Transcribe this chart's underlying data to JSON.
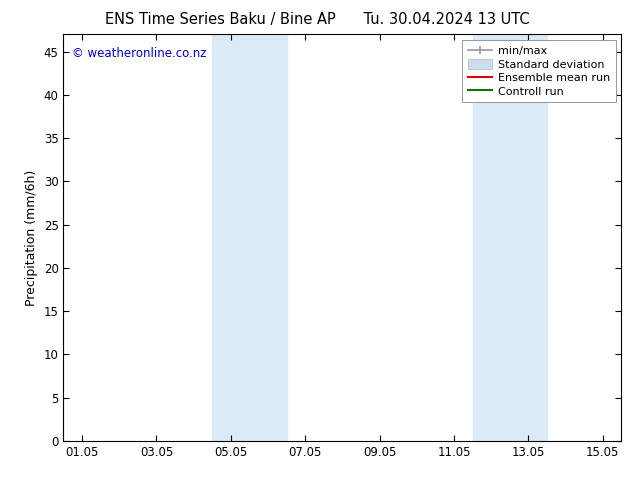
{
  "title_left": "ENS Time Series Baku / Bine AP",
  "title_right": "Tu. 30.04.2024 13 UTC",
  "ylabel": "Precipitation (mm/6h)",
  "watermark": "© weatheronline.co.nz",
  "watermark_color": "#0000cc",
  "background_color": "#ffffff",
  "plot_bg_color": "#ffffff",
  "ylim": [
    0,
    47
  ],
  "yticks": [
    0,
    5,
    10,
    15,
    20,
    25,
    30,
    35,
    40,
    45
  ],
  "xtick_labels": [
    "01.05",
    "03.05",
    "05.05",
    "07.05",
    "09.05",
    "11.05",
    "13.05",
    "15.05"
  ],
  "xtick_positions": [
    0,
    2,
    4,
    6,
    8,
    10,
    12,
    14
  ],
  "xlim": [
    -0.5,
    14.5
  ],
  "shaded_regions": [
    {
      "x_start": 3.5,
      "x_end": 5.5,
      "color": "#daeaf7"
    },
    {
      "x_start": 10.5,
      "x_end": 12.5,
      "color": "#daeaf7"
    }
  ],
  "legend_entries": [
    {
      "label": "min/max",
      "color": "#999999",
      "lw": 1.2
    },
    {
      "label": "Standard deviation",
      "color": "#ccddee",
      "lw": 6
    },
    {
      "label": "Ensemble mean run",
      "color": "#dd0000",
      "lw": 1.5
    },
    {
      "label": "Controll run",
      "color": "#007700",
      "lw": 1.5
    }
  ],
  "title_fontsize": 10.5,
  "axis_label_fontsize": 9,
  "tick_fontsize": 8.5,
  "watermark_fontsize": 8.5,
  "legend_fontsize": 8
}
